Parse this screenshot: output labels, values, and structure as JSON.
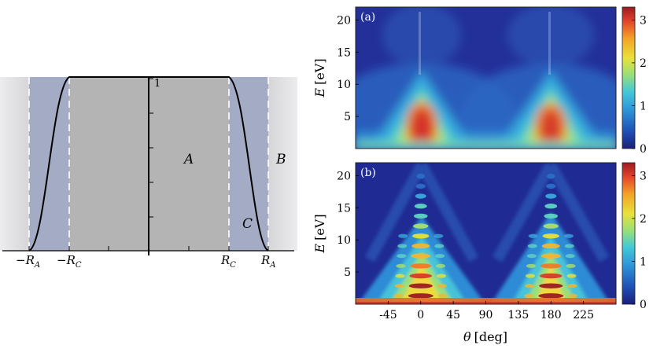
{
  "left_panel": {
    "one_label": "1",
    "region_labels": {
      "A": "A",
      "B": "B",
      "C": "C"
    },
    "x_tick_labels": {
      "neg_RA": {
        "sign": "−",
        "sym": "R",
        "sub": "A"
      },
      "neg_RC": {
        "sign": "−",
        "sym": "R",
        "sub": "C"
      },
      "RC": {
        "sign": "",
        "sym": "R",
        "sub": "C"
      },
      "RA": {
        "sign": "",
        "sym": "R",
        "sub": "A"
      }
    },
    "colors": {
      "outer": "#dcdcdf",
      "shell": "#a3acc4",
      "inner": "#b4b4b5",
      "curve": "#000000",
      "dash": "#ffffff"
    }
  },
  "chart_data": [
    {
      "type": "heatmap",
      "panel_label": "(a)",
      "ylabel": {
        "sym": "E",
        "unit": "[eV]"
      },
      "y_ticks": [
        5,
        10,
        15,
        20
      ],
      "ylim": [
        0,
        22
      ],
      "xlim": [
        -90,
        270
      ],
      "colorbar": {
        "ticks": [
          0,
          1,
          2,
          3
        ],
        "range": [
          0,
          3.3
        ]
      },
      "peaks_theta_deg": [
        0,
        180
      ]
    },
    {
      "type": "heatmap",
      "panel_label": "(b)",
      "ylabel": {
        "sym": "E",
        "unit": "[eV]"
      },
      "y_ticks": [
        5,
        10,
        15,
        20
      ],
      "ylim": [
        0,
        22
      ],
      "xlim": [
        -90,
        270
      ],
      "x_ticks": [
        -45,
        0,
        45,
        90,
        135,
        180,
        225
      ],
      "xlabel": {
        "sym": "θ",
        "unit": "[deg]"
      },
      "colorbar": {
        "ticks": [
          0,
          1,
          2,
          3
        ],
        "range": [
          0,
          3.3
        ]
      },
      "peaks_theta_deg": [
        0,
        180
      ]
    }
  ]
}
